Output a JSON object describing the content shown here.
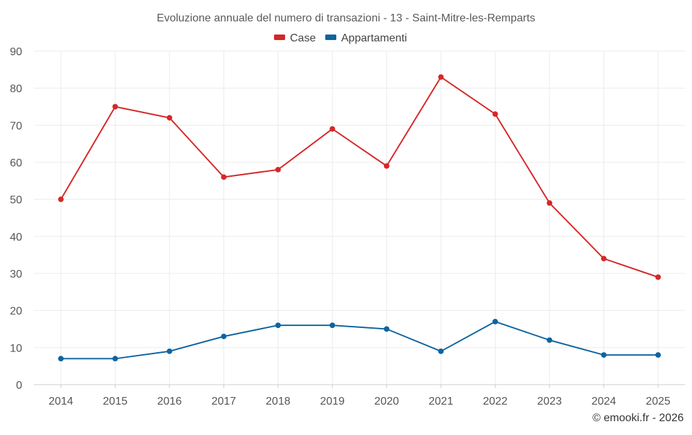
{
  "chart_data": {
    "type": "line",
    "title": "Evoluzione annuale del numero di transazioni - 13 - Saint-Mitre-les-Remparts",
    "categories": [
      "2014",
      "2015",
      "2016",
      "2017",
      "2018",
      "2019",
      "2020",
      "2021",
      "2022",
      "2023",
      "2024",
      "2025"
    ],
    "series": [
      {
        "name": "Case",
        "color": "#d62728",
        "values": [
          50,
          75,
          72,
          56,
          58,
          69,
          59,
          83,
          73,
          49,
          34,
          29
        ]
      },
      {
        "name": "Appartamenti",
        "color": "#0e64a0",
        "values": [
          7,
          7,
          9,
          13,
          16,
          16,
          15,
          9,
          17,
          12,
          8,
          8
        ]
      }
    ],
    "ylim": [
      0,
      90
    ],
    "yticks": [
      0,
      10,
      20,
      30,
      40,
      50,
      60,
      70,
      80,
      90
    ],
    "grid": true,
    "legend_position": "top-center"
  },
  "credit": "© emooki.fr - 2026"
}
